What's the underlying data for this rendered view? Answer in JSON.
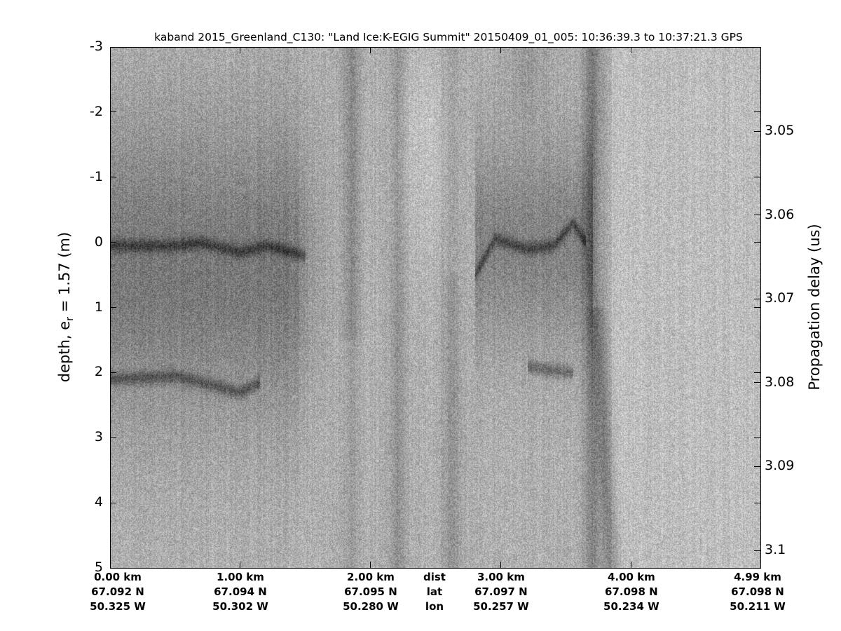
{
  "chart_data": {
    "type": "heatmap",
    "title": "kaband 2015_Greenland_C130: \"Land Ice:K-EGIG Summit\"  20150409_01_005: 10:36:39.3 to 10:37:21.3 GPS",
    "ylabel": "depth, e",
    "ylabel_sub": "r",
    "ylabel_tail": " = 1.57 (m)",
    "y2label": "Propagation delay (us)",
    "ylim": [
      -3,
      5
    ],
    "yticks": [
      "-3",
      "-2",
      "-1",
      "0",
      "1",
      "2",
      "3",
      "4",
      "5"
    ],
    "yticks_values": [
      -3,
      -2,
      -1,
      0,
      1,
      2,
      3,
      4,
      5
    ],
    "y2ticks": [
      "3.05",
      "3.06",
      "3.07",
      "3.08",
      "3.09",
      "3.1"
    ],
    "y2ticks_values": [
      3.05,
      3.06,
      3.07,
      3.08,
      3.09,
      3.1
    ],
    "xlim_km": [
      0,
      4.99
    ],
    "colormap": "gray",
    "xticks": [
      {
        "km": 0,
        "dist": "0.00 km",
        "lat": "67.092 N",
        "lon": "50.325 W"
      },
      {
        "km": 1,
        "dist": "1.00 km",
        "lat": "67.094 N",
        "lon": "50.302 W"
      },
      {
        "km": 2,
        "dist": "2.00 km",
        "lat": "67.095 N",
        "lon": "50.280 W"
      },
      {
        "km": 3,
        "dist": "3.00 km",
        "lat": "67.097 N",
        "lon": "50.257 W"
      },
      {
        "km": 4,
        "dist": "4.00 km",
        "lat": "67.098 N",
        "lon": "50.234 W"
      },
      {
        "km": 4.99,
        "dist": "4.99 km",
        "lat": "67.098 N",
        "lon": "50.211 W"
      }
    ],
    "row_labels": {
      "dist": "dist",
      "lat": "lat",
      "lon": "lon"
    },
    "reflectors": [
      {
        "x_km": [
          0,
          0.5,
          0.7,
          1.0,
          1.2,
          1.5
        ],
        "depth_m": [
          0.05,
          0.05,
          0.0,
          0.15,
          0.05,
          0.2
        ]
      },
      {
        "x_km": [
          0,
          0.5,
          0.8,
          1.0,
          1.15
        ],
        "depth_m": [
          2.1,
          2.05,
          2.2,
          2.3,
          2.15
        ]
      },
      {
        "x_km": [
          2.8,
          2.95,
          3.2,
          3.4,
          3.55,
          3.65
        ],
        "depth_m": [
          0.5,
          -0.05,
          0.1,
          0.05,
          -0.3,
          0.0
        ]
      },
      {
        "x_km": [
          3.2,
          3.35,
          3.55
        ],
        "depth_m": [
          1.9,
          1.95,
          2.0
        ]
      }
    ]
  }
}
